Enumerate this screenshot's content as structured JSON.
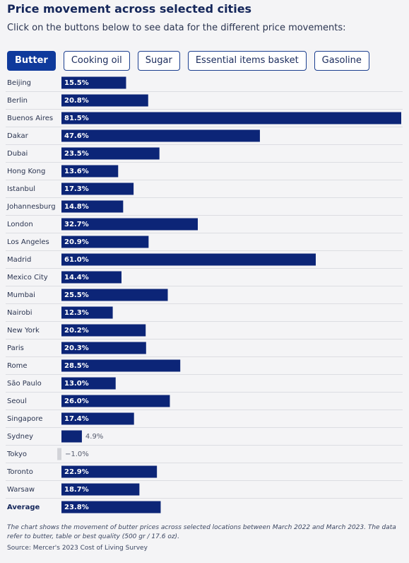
{
  "title": "Price movement across selected cities",
  "subtitle": "Click on the buttons below to see data for the different price movements:",
  "buttons": [
    "Butter",
    "Cooking oil",
    "Sugar",
    "Essential items basket",
    "Gasoline"
  ],
  "selected_button": 0,
  "chart_data": {
    "type": "bar",
    "orientation": "horizontal",
    "categories": [
      "Beijing",
      "Berlin",
      "Buenos Aires",
      "Dakar",
      "Dubai",
      "Hong Kong",
      "Istanbul",
      "Johannesburg",
      "London",
      "Los Angeles",
      "Madrid",
      "Mexico City",
      "Mumbai",
      "Nairobi",
      "New York",
      "Paris",
      "Rome",
      "São Paulo",
      "Seoul",
      "Singapore",
      "Sydney",
      "Tokyo",
      "Toronto",
      "Warsaw",
      "Average"
    ],
    "values": [
      15.5,
      20.8,
      81.5,
      47.6,
      23.5,
      13.6,
      17.3,
      14.8,
      32.7,
      20.9,
      61.0,
      14.4,
      25.5,
      12.3,
      20.2,
      20.3,
      28.5,
      13.0,
      26.0,
      17.4,
      4.9,
      -1.0,
      22.9,
      18.7,
      23.8
    ],
    "value_labels": [
      "15.5%",
      "20.8%",
      "81.5%",
      "47.6%",
      "23.5%",
      "13.6%",
      "17.3%",
      "14.8%",
      "32.7%",
      "20.9%",
      "61.0%",
      "14.4%",
      "25.5%",
      "12.3%",
      "20.2%",
      "20.3%",
      "28.5%",
      "13.0%",
      "26.0%",
      "17.4%",
      "4.9%",
      "−1.0%",
      "22.9%",
      "18.7%",
      "23.8%"
    ],
    "color": "#0c2577",
    "negative_color": "#d2d3d8"
  },
  "footnote": "The chart shows the movement of butter prices across selected locations between March 2022 and March 2023. The data refer to butter, table or best quality (500 gr / 17.6 oz).",
  "source": "Source: Mercer's 2023 Cost of Living Survey"
}
